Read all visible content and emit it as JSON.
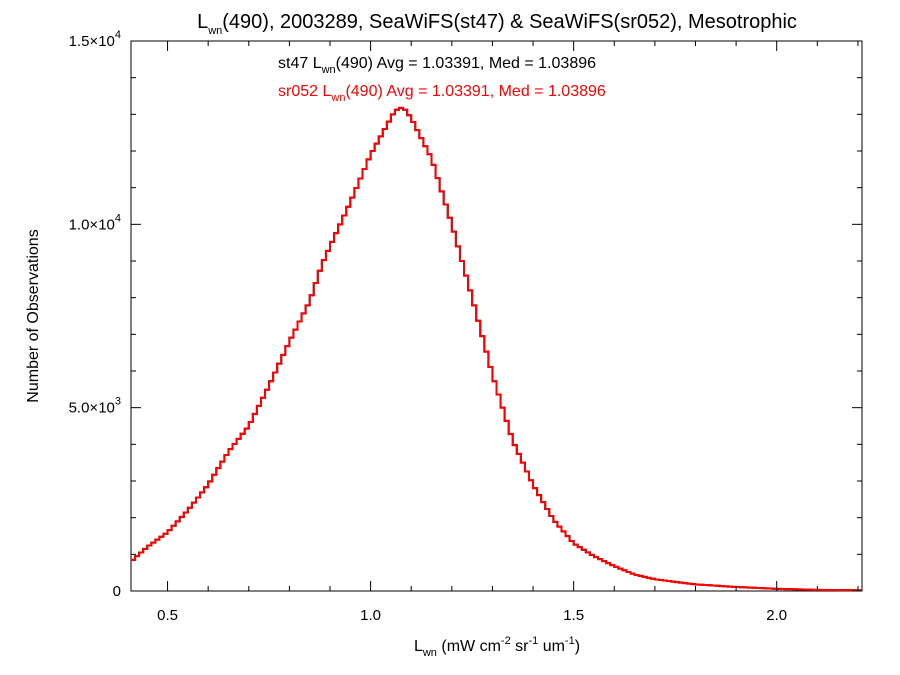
{
  "chart_data": {
    "type": "histogram",
    "title": {
      "pre": "L",
      "sub": "wn",
      "post": "(490), 2003289, SeaWiFS(st47) & SeaWiFS(sr052), Mesotrophic"
    },
    "annotations": [
      {
        "pre": "st47 L",
        "sub": "wn",
        "post": "(490) Avg = 1.03391, Med = 1.03896",
        "color": "#000000"
      },
      {
        "pre": "sr052 L",
        "sub": "wn",
        "post": "(490) Avg = 1.03391, Med = 1.03896",
        "color": "#ff0000"
      }
    ],
    "xlabel": {
      "pre": "L",
      "sub": "wn",
      "mid1": " (mW cm",
      "sup1": "-2",
      "mid2": " sr",
      "sup2": "-1",
      "mid3": " um",
      "sup3": "-1",
      "post": ")"
    },
    "ylabel": "Number of Observations",
    "xlim": [
      0.41,
      2.21
    ],
    "ylim": [
      0,
      15000
    ],
    "xticks": [
      {
        "value": 0.5,
        "label": "0.5"
      },
      {
        "value": 1.0,
        "label": "1.0"
      },
      {
        "value": 1.5,
        "label": "1.5"
      },
      {
        "value": 2.0,
        "label": "2.0"
      }
    ],
    "yticks": [
      {
        "value": 0,
        "base": "0",
        "exp": ""
      },
      {
        "value": 5000,
        "base": "5.0×10",
        "exp": "3"
      },
      {
        "value": 10000,
        "base": "1.0×10",
        "exp": "4"
      },
      {
        "value": 15000,
        "base": "1.5×10",
        "exp": "4"
      }
    ],
    "bin_width": 0.01,
    "series": [
      {
        "name": "st47",
        "color": "#000000",
        "x": [
          0.4,
          0.45,
          0.5,
          0.55,
          0.6,
          0.65,
          0.7,
          0.75,
          0.8,
          0.85,
          0.88,
          0.9,
          0.95,
          1.0,
          1.03,
          1.06,
          1.08,
          1.1,
          1.15,
          1.2,
          1.25,
          1.3,
          1.35,
          1.4,
          1.45,
          1.5,
          1.55,
          1.6,
          1.65,
          1.7,
          1.8,
          1.9,
          2.0,
          2.1,
          2.21
        ],
        "y": [
          700,
          1200,
          1600,
          2200,
          2900,
          3800,
          4500,
          5600,
          6800,
          7900,
          8900,
          9400,
          10600,
          11900,
          12500,
          13100,
          13200,
          12900,
          11800,
          10000,
          8000,
          5900,
          4100,
          2900,
          1950,
          1300,
          950,
          680,
          450,
          320,
          180,
          110,
          60,
          30,
          20
        ]
      },
      {
        "name": "sr052",
        "color": "#ff0000",
        "x": [
          0.4,
          0.45,
          0.5,
          0.55,
          0.6,
          0.65,
          0.7,
          0.75,
          0.8,
          0.85,
          0.88,
          0.9,
          0.95,
          1.0,
          1.03,
          1.06,
          1.08,
          1.1,
          1.15,
          1.2,
          1.25,
          1.3,
          1.35,
          1.4,
          1.45,
          1.5,
          1.55,
          1.6,
          1.65,
          1.7,
          1.8,
          1.9,
          2.0,
          2.1,
          2.21
        ],
        "y": [
          700,
          1200,
          1600,
          2200,
          2900,
          3800,
          4500,
          5600,
          6800,
          7900,
          8900,
          9400,
          10600,
          11900,
          12500,
          13100,
          13200,
          12900,
          11800,
          10000,
          8000,
          5900,
          4100,
          2900,
          1950,
          1300,
          950,
          680,
          450,
          320,
          180,
          110,
          60,
          30,
          20
        ]
      }
    ]
  }
}
